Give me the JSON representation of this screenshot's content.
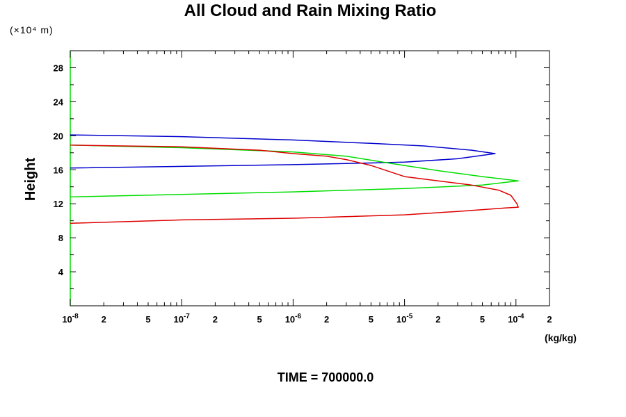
{
  "chart_data": {
    "type": "line",
    "title": "All Cloud and Rain Mixing Ratio",
    "y_scale_note": "(×10⁴ m)",
    "ylabel": "Height",
    "xlabel": "(kg/kg)",
    "x_scale": "log",
    "xlim": [
      1e-08,
      0.0002
    ],
    "ylim": [
      0,
      30
    ],
    "y_ticks": [
      {
        "value": 4,
        "label": "4"
      },
      {
        "value": 8,
        "label": "8"
      },
      {
        "value": 12,
        "label": "12"
      },
      {
        "value": 16,
        "label": "16"
      },
      {
        "value": 20,
        "label": "20"
      },
      {
        "value": 24,
        "label": "24"
      },
      {
        "value": 28,
        "label": "28"
      }
    ],
    "x_ticks": [
      {
        "value": 1e-08,
        "mantissa": "10",
        "exp": "-8"
      },
      {
        "value": 2e-08,
        "mantissa": "2",
        "exp": ""
      },
      {
        "value": 5e-08,
        "mantissa": "5",
        "exp": ""
      },
      {
        "value": 1e-07,
        "mantissa": "10",
        "exp": "-7"
      },
      {
        "value": 2e-07,
        "mantissa": "2",
        "exp": ""
      },
      {
        "value": 5e-07,
        "mantissa": "5",
        "exp": ""
      },
      {
        "value": 1e-06,
        "mantissa": "10",
        "exp": "-6"
      },
      {
        "value": 2e-06,
        "mantissa": "2",
        "exp": ""
      },
      {
        "value": 5e-06,
        "mantissa": "5",
        "exp": ""
      },
      {
        "value": 1e-05,
        "mantissa": "10",
        "exp": "-5"
      },
      {
        "value": 2e-05,
        "mantissa": "2",
        "exp": ""
      },
      {
        "value": 5e-05,
        "mantissa": "5",
        "exp": ""
      },
      {
        "value": 0.0001,
        "mantissa": "10",
        "exp": "-4"
      },
      {
        "value": 0.0002,
        "mantissa": "2",
        "exp": ""
      }
    ],
    "series": [
      {
        "color": "#0000cc",
        "points": [
          [
            1e-08,
            20.1
          ],
          [
            1e-07,
            19.9
          ],
          [
            1e-06,
            19.5
          ],
          [
            5e-06,
            19.1
          ],
          [
            1.5e-05,
            18.8
          ],
          [
            4e-05,
            18.3
          ],
          [
            6.5e-05,
            17.9
          ],
          [
            3e-05,
            17.3
          ],
          [
            1e-05,
            16.9
          ],
          [
            5e-06,
            16.8
          ],
          [
            1e-06,
            16.6
          ],
          [
            1e-07,
            16.4
          ],
          [
            1e-08,
            16.2
          ]
        ]
      },
      {
        "color": "#00dd00",
        "points": [
          [
            1e-08,
            18.9
          ],
          [
            1e-07,
            18.6
          ],
          [
            1e-06,
            18.1
          ],
          [
            3e-06,
            17.6
          ],
          [
            8e-06,
            16.7
          ],
          [
            2e-05,
            15.9
          ],
          [
            5e-05,
            15.2
          ],
          [
            0.000105,
            14.7
          ],
          [
            5e-05,
            14.2
          ],
          [
            1e-05,
            13.8
          ],
          [
            1e-06,
            13.4
          ],
          [
            1e-07,
            13.1
          ],
          [
            1e-08,
            12.8
          ]
        ]
      },
      {
        "color": "#dd0000",
        "points": [
          [
            1e-08,
            18.9
          ],
          [
            1e-07,
            18.7
          ],
          [
            5e-07,
            18.3
          ],
          [
            1e-06,
            17.9
          ],
          [
            2e-06,
            17.6
          ],
          [
            3e-06,
            17.2
          ],
          [
            5e-06,
            16.5
          ],
          [
            1e-05,
            15.2
          ],
          [
            2e-05,
            14.7
          ],
          [
            4e-05,
            14.2
          ],
          [
            7e-05,
            13.6
          ],
          [
            9e-05,
            13.0
          ],
          [
            0.000102,
            12.0
          ],
          [
            0.000105,
            11.6
          ],
          [
            8e-05,
            11.5
          ],
          [
            3e-05,
            11.1
          ],
          [
            1e-05,
            10.7
          ],
          [
            1e-06,
            10.3
          ],
          [
            1e-07,
            10.1
          ],
          [
            1e-08,
            9.7
          ]
        ]
      }
    ]
  },
  "footer": {
    "time_label": "TIME = 700000.0"
  }
}
